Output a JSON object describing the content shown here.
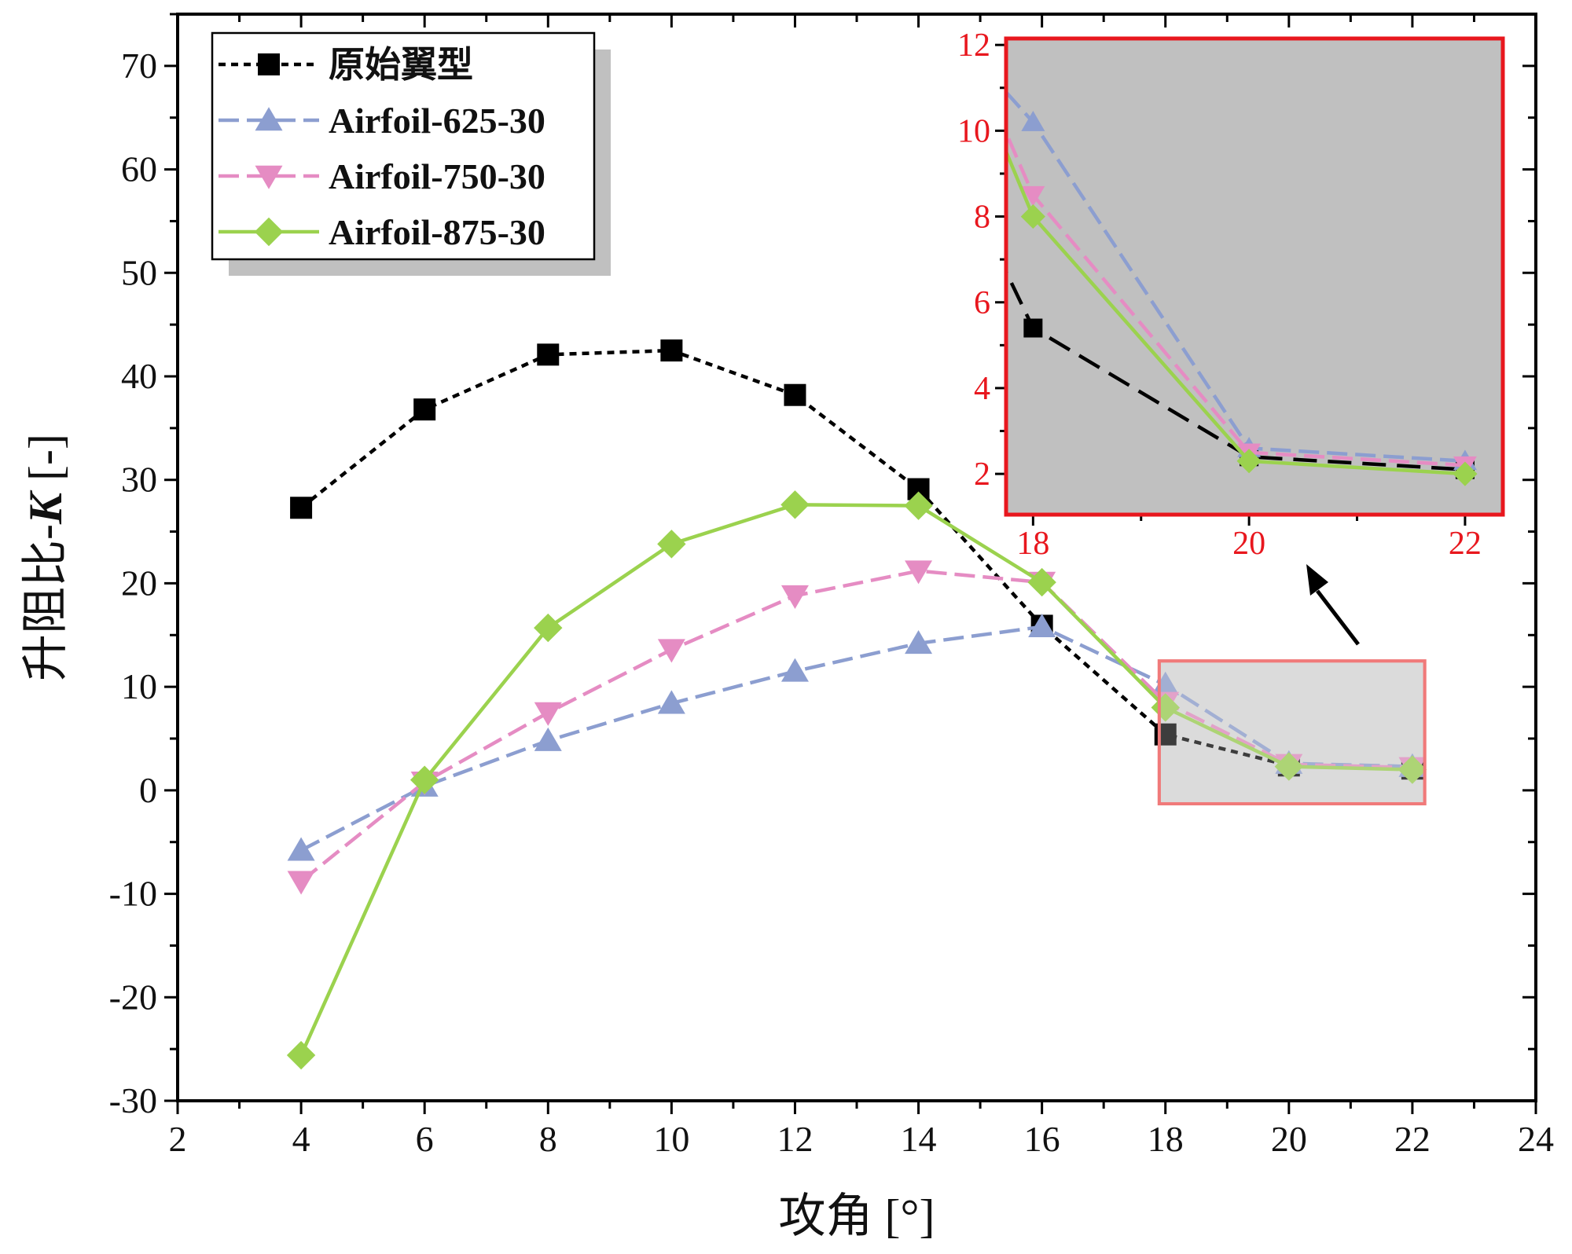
{
  "chart_data": {
    "type": "line",
    "title": "",
    "xlabel": "攻角 [°]",
    "ylabel_main": "升阻比-",
    "ylabel_symbol": "K",
    "ylabel_unit": " [-]",
    "xlim": [
      2,
      24
    ],
    "ylim": [
      -30,
      75
    ],
    "xticks": [
      "2",
      "4",
      "6",
      "8",
      "10",
      "12",
      "14",
      "16",
      "18",
      "20",
      "22",
      "24"
    ],
    "yticks": [
      "-30",
      "-20",
      "-10",
      "0",
      "10",
      "20",
      "30",
      "40",
      "50",
      "60",
      "70"
    ],
    "x": [
      4,
      6,
      8,
      10,
      12,
      14,
      16,
      18,
      20,
      22
    ],
    "series": [
      {
        "name": "原始翼型",
        "color": "#000000",
        "marker": "square",
        "dash": "dotted",
        "values": [
          27.3,
          36.8,
          42.1,
          42.5,
          38.2,
          29.1,
          15.9,
          5.4,
          2.4,
          2.1
        ]
      },
      {
        "name": "Airfoil-625-30",
        "color": "#8c9ed0",
        "marker": "triangle-up",
        "dash": "dash",
        "values": [
          -5.8,
          0.4,
          4.8,
          8.4,
          11.5,
          14.2,
          15.8,
          10.2,
          2.6,
          2.3
        ]
      },
      {
        "name": "Airfoil-750-30",
        "color": "#e58cc3",
        "marker": "triangle-down",
        "dash": "dash",
        "values": [
          -8.8,
          0.8,
          7.5,
          13.6,
          18.8,
          21.2,
          20.1,
          8.5,
          2.5,
          2.2
        ]
      },
      {
        "name": "Airfoil-875-30",
        "color": "#9bd24e",
        "marker": "diamond",
        "dash": "solid",
        "values": [
          -25.6,
          1.0,
          15.7,
          23.8,
          27.6,
          27.5,
          20.1,
          8.0,
          2.3,
          2.0
        ]
      }
    ],
    "legend_position": "top-left",
    "inset": {
      "xlim": [
        17.75,
        22.35
      ],
      "ylim": [
        1.05,
        12.15
      ],
      "xticks": [
        "18",
        "20",
        "22"
      ],
      "yticks": [
        "2",
        "4",
        "6",
        "8",
        "10",
        "12"
      ],
      "x_values": [
        18,
        20,
        22
      ],
      "zoom_region": {
        "x": [
          17.9,
          22.2
        ],
        "y": [
          -1.3,
          12.5
        ]
      },
      "background": "#c0c0c0",
      "frame_color": "#e8171e",
      "position": "top-right"
    }
  }
}
